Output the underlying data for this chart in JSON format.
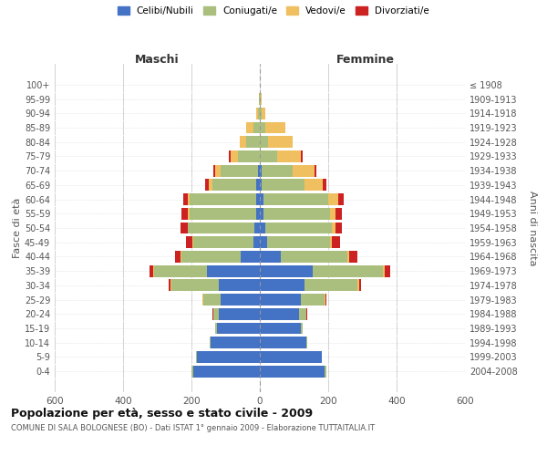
{
  "age_groups": [
    "0-4",
    "5-9",
    "10-14",
    "15-19",
    "20-24",
    "25-29",
    "30-34",
    "35-39",
    "40-44",
    "45-49",
    "50-54",
    "55-59",
    "60-64",
    "65-69",
    "70-74",
    "75-79",
    "80-84",
    "85-89",
    "90-94",
    "95-99",
    "100+"
  ],
  "birth_years": [
    "2004-2008",
    "1999-2003",
    "1994-1998",
    "1989-1993",
    "1984-1988",
    "1979-1983",
    "1974-1978",
    "1969-1973",
    "1964-1968",
    "1959-1963",
    "1954-1958",
    "1949-1953",
    "1944-1948",
    "1939-1943",
    "1934-1938",
    "1929-1933",
    "1924-1928",
    "1919-1923",
    "1914-1918",
    "1909-1913",
    "≤ 1908"
  ],
  "male": {
    "celibi": [
      195,
      185,
      145,
      125,
      120,
      115,
      120,
      155,
      55,
      20,
      15,
      10,
      10,
      10,
      5,
      0,
      0,
      0,
      0,
      0,
      0
    ],
    "coniugati": [
      5,
      2,
      2,
      5,
      15,
      50,
      140,
      155,
      175,
      175,
      195,
      195,
      195,
      130,
      110,
      65,
      40,
      20,
      5,
      2,
      0
    ],
    "vedovi": [
      0,
      0,
      0,
      0,
      2,
      2,
      2,
      2,
      2,
      2,
      2,
      5,
      5,
      10,
      15,
      20,
      20,
      20,
      5,
      0,
      0
    ],
    "divorziati": [
      0,
      0,
      0,
      0,
      2,
      2,
      5,
      10,
      15,
      20,
      20,
      20,
      15,
      10,
      5,
      5,
      0,
      0,
      0,
      0,
      0
    ]
  },
  "female": {
    "nubili": [
      190,
      180,
      135,
      120,
      115,
      120,
      130,
      155,
      60,
      20,
      15,
      10,
      10,
      5,
      5,
      0,
      0,
      0,
      0,
      0,
      0
    ],
    "coniugate": [
      5,
      2,
      3,
      5,
      20,
      70,
      155,
      205,
      195,
      185,
      195,
      195,
      190,
      125,
      90,
      50,
      25,
      15,
      5,
      2,
      0
    ],
    "vedove": [
      0,
      0,
      0,
      0,
      2,
      2,
      5,
      5,
      5,
      5,
      10,
      15,
      30,
      55,
      65,
      70,
      70,
      60,
      10,
      2,
      0
    ],
    "divorziate": [
      0,
      0,
      0,
      0,
      2,
      2,
      5,
      15,
      25,
      25,
      20,
      20,
      15,
      10,
      5,
      5,
      0,
      0,
      0,
      0,
      0
    ]
  },
  "colors": {
    "celibi_nubili": "#4472C4",
    "coniugati": "#AABF7E",
    "vedovi": "#F0C060",
    "divorziati": "#CC2222"
  },
  "xlim": [
    -600,
    600
  ],
  "xticks": [
    -600,
    -400,
    -200,
    0,
    200,
    400,
    600
  ],
  "xtick_labels": [
    "600",
    "400",
    "200",
    "0",
    "200",
    "400",
    "600"
  ],
  "title": "Popolazione per età, sesso e stato civile - 2009",
  "subtitle": "COMUNE DI SALA BOLOGNESE (BO) - Dati ISTAT 1° gennaio 2009 - Elaborazione TUTTAITALIA.IT",
  "ylabel_left": "Fasce di età",
  "ylabel_right": "Anni di nascita",
  "legend_labels": [
    "Celibi/Nubili",
    "Coniugati/e",
    "Vedovi/e",
    "Divorziati/e"
  ],
  "bg_color": "#FFFFFF",
  "grid_color": "#CCCCCC",
  "maschi_label": "Maschi",
  "femmine_label": "Femmine"
}
